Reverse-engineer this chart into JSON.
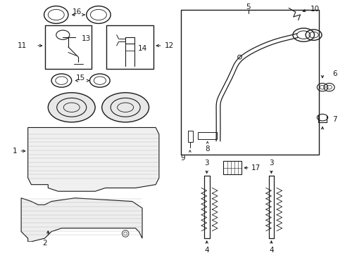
{
  "bg_color": "#ffffff",
  "line_color": "#1a1a1a",
  "fig_width": 4.9,
  "fig_height": 3.6,
  "dpi": 100,
  "label_size": 7.5,
  "border_color": "#333333"
}
